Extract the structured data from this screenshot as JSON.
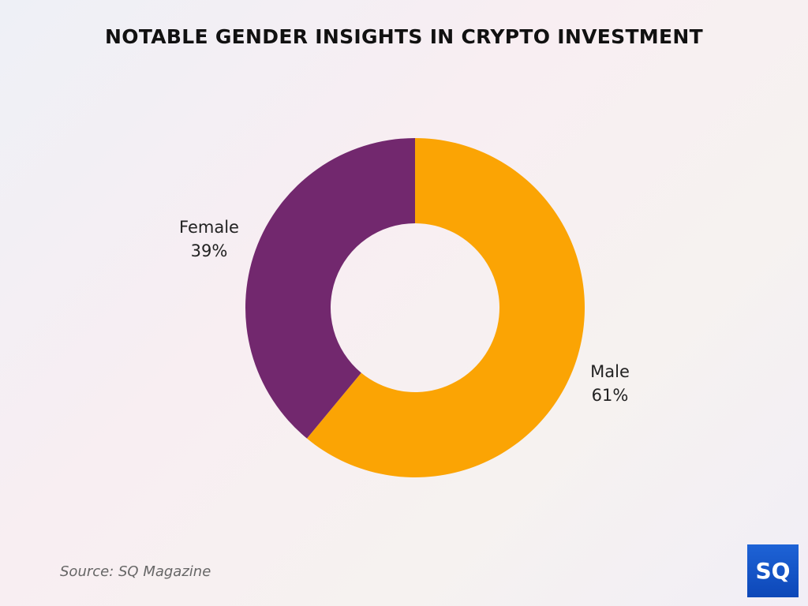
{
  "title": "NOTABLE GENDER INSIGHTS IN CRYPTO INVESTMENT",
  "source": "Source: SQ Magazine",
  "logo_text": "SQ",
  "chart_data": {
    "type": "pie",
    "donut": true,
    "title": "NOTABLE GENDER INSIGHTS IN CRYPTO INVESTMENT",
    "slices": [
      {
        "label": "Male",
        "value": 61,
        "display": "61%",
        "color": "#fba404"
      },
      {
        "label": "Female",
        "value": 39,
        "display": "39%",
        "color": "#72286e"
      }
    ]
  }
}
